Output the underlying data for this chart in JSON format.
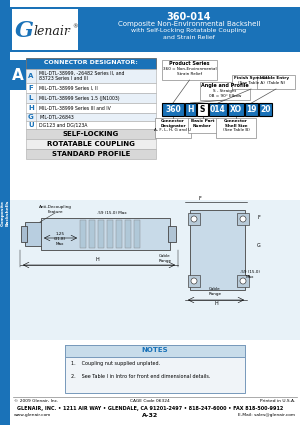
{
  "title_number": "360-014",
  "title_line1": "Composite Non-Environmental Backshell",
  "title_line2": "with Self-Locking Rotatable Coupling",
  "title_line3": "and Strain Relief",
  "header_bg": "#1a72b8",
  "white": "#ffffff",
  "connector_title": "CONNECTOR DESIGNATOR:",
  "connector_rows": [
    [
      "A",
      "MIL-DTL-38999, -26482 Series II, and\n83723 Series I and III"
    ],
    [
      "F",
      "MIL-DTL-38999 Series I, II"
    ],
    [
      "L",
      "MIL-DTL-38999 Series 1.5 (JN1003)"
    ],
    [
      "H",
      "MIL-DTL-38999 Series III and IV"
    ],
    [
      "G",
      "MIL-DTL-26843"
    ],
    [
      "U",
      "DG123 and DG/123A"
    ]
  ],
  "self_locking": "SELF-LOCKING",
  "rotatable": "ROTATABLE COUPLING",
  "standard": "STANDARD PROFILE",
  "pn_boxes": [
    "360",
    "H",
    "S",
    "014",
    "XO",
    "19",
    "20"
  ],
  "pn_box_colors": [
    "#1a72b8",
    "#1a72b8",
    "#ffffff",
    "#1a72b8",
    "#1a72b8",
    "#1a72b8",
    "#1a72b8"
  ],
  "pn_text_colors": [
    "#ffffff",
    "#ffffff",
    "#000000",
    "#ffffff",
    "#ffffff",
    "#ffffff",
    "#ffffff"
  ],
  "notes_title": "NOTES",
  "notes": [
    "1.    Coupling nut supplied unplated.",
    "2.    See Table I in Intro for front end dimensional details."
  ],
  "footer_copy": "© 2009 Glenair, Inc.",
  "footer_cage": "CAGE Code 06324",
  "footer_printed": "Printed in U.S.A.",
  "footer_bold": "GLENAIR, INC. • 1211 AIR WAY • GLENDALE, CA 91201-2497 • 818-247-6000 • FAX 818-500-9912",
  "footer_web": "www.glenair.com",
  "footer_page": "A-32",
  "footer_email": "E-Mail: sales@glenair.com",
  "bg_color": "#ffffff",
  "light_blue_draw": "#ccdded",
  "tab_label": "Composite\nBackshells"
}
